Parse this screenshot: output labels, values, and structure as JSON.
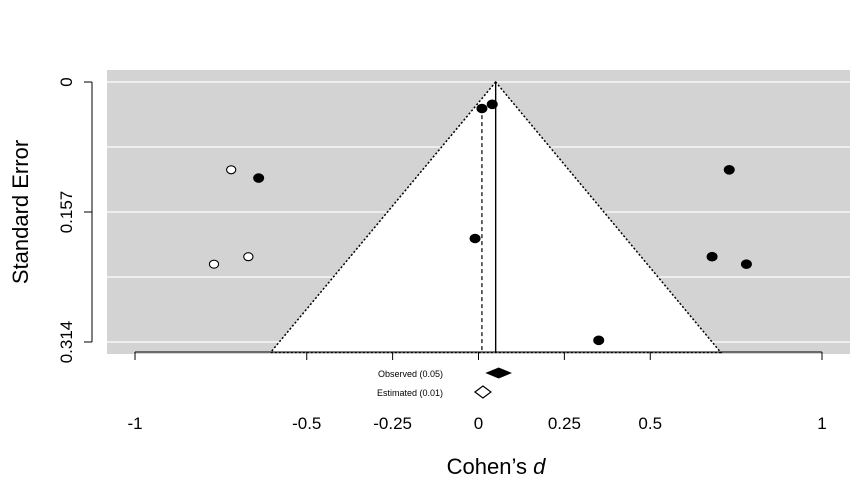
{
  "chart_data": {
    "type": "scatter",
    "xlabel": "Cohen’s",
    "xlabel_italic": "d",
    "ylabel": "Standard Error",
    "xlim": [
      -1.0,
      1.0
    ],
    "ylim": [
      0.314,
      0
    ],
    "x_ticks": [
      -1,
      -0.5,
      -0.25,
      0,
      0.25,
      0.5,
      1
    ],
    "x_tick_labels": [
      "-1",
      "-0.5",
      "-0.25",
      "0",
      "0.25",
      "0.5",
      "1"
    ],
    "y_ticks": [
      0,
      0.157,
      0.314
    ],
    "y_tick_labels": [
      "0",
      "0.157",
      "0.314"
    ],
    "y_gridlines": [
      0,
      0.0785,
      0.157,
      0.2355,
      0.314
    ],
    "grid": true,
    "background_color": "#d3d3d3",
    "funnel_fill": "#ffffff",
    "observed_effect": 0.05,
    "estimated_effect": 0.01,
    "funnel_apex": 0.05,
    "funnel_base": [
      -0.58,
      0.68
    ],
    "observed_points": [
      {
        "x": 0.01,
        "y": 0.032
      },
      {
        "x": 0.04,
        "y": 0.027
      },
      {
        "x": -0.64,
        "y": 0.116
      },
      {
        "x": -0.01,
        "y": 0.189
      },
      {
        "x": 0.73,
        "y": 0.106
      },
      {
        "x": 0.68,
        "y": 0.211
      },
      {
        "x": 0.78,
        "y": 0.22
      },
      {
        "x": 0.35,
        "y": 0.312
      }
    ],
    "imputed_points": [
      {
        "x": -0.72,
        "y": 0.106
      },
      {
        "x": -0.67,
        "y": 0.211
      },
      {
        "x": -0.77,
        "y": 0.22
      }
    ],
    "legend": [
      {
        "label": "Observed (0.05)",
        "marker": "filled-diamond",
        "value": 0.05
      },
      {
        "label": "Estimated (0.01)",
        "marker": "open-diamond",
        "value": 0.01
      }
    ]
  }
}
